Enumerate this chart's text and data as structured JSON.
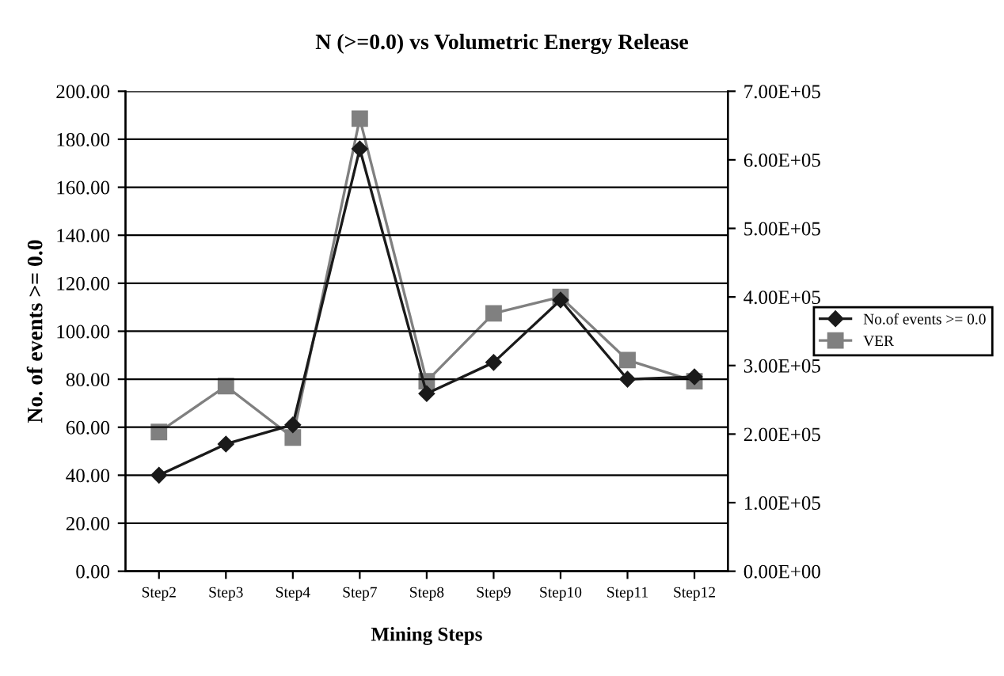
{
  "chart_data": {
    "type": "line",
    "title": "N (>=0.0) vs Volumetric Energy Release",
    "xlabel": "Mining Steps",
    "ylabel": "No. of events >= 0.0",
    "categories": [
      "Step2",
      "Step3",
      "Step4",
      "Step7",
      "Step8",
      "Step9",
      "Step10",
      "Step11",
      "Step12"
    ],
    "series": [
      {
        "name": "No.of events >= 0.0",
        "color": "#1a1a1a",
        "marker": "diamond",
        "values": [
          40,
          53,
          61,
          176,
          74,
          87,
          113,
          80,
          81
        ]
      },
      {
        "name": "VER",
        "color": "#808080",
        "marker": "square",
        "axis": "y2",
        "values": [
          203000,
          270000,
          195000,
          660000,
          277000,
          376000,
          400000,
          308000,
          277000
        ]
      }
    ],
    "ylim": [
      0,
      200
    ],
    "yticks": [
      {
        "value": 0,
        "label": "0.00"
      },
      {
        "value": 20,
        "label": "20.00"
      },
      {
        "value": 40,
        "label": "40.00"
      },
      {
        "value": 60,
        "label": "60.00"
      },
      {
        "value": 80,
        "label": "80.00"
      },
      {
        "value": 100,
        "label": "100.00"
      },
      {
        "value": 120,
        "label": "120.00"
      },
      {
        "value": 140,
        "label": "140.00"
      },
      {
        "value": 160,
        "label": "160.00"
      },
      {
        "value": 180,
        "label": "180.00"
      },
      {
        "value": 200,
        "label": "200.00"
      }
    ],
    "y2lim": [
      0,
      700000
    ],
    "y2ticks": [
      {
        "value": 0,
        "label": "0.00E+00"
      },
      {
        "value": 100000,
        "label": "1.00E+05"
      },
      {
        "value": 200000,
        "label": "2.00E+05"
      },
      {
        "value": 300000,
        "label": "3.00E+05"
      },
      {
        "value": 400000,
        "label": "4.00E+05"
      },
      {
        "value": 500000,
        "label": "5.00E+05"
      },
      {
        "value": 600000,
        "label": "6.00E+05"
      },
      {
        "value": 700000,
        "label": "7.00E+05"
      }
    ],
    "grid": "y",
    "legend": "right"
  }
}
